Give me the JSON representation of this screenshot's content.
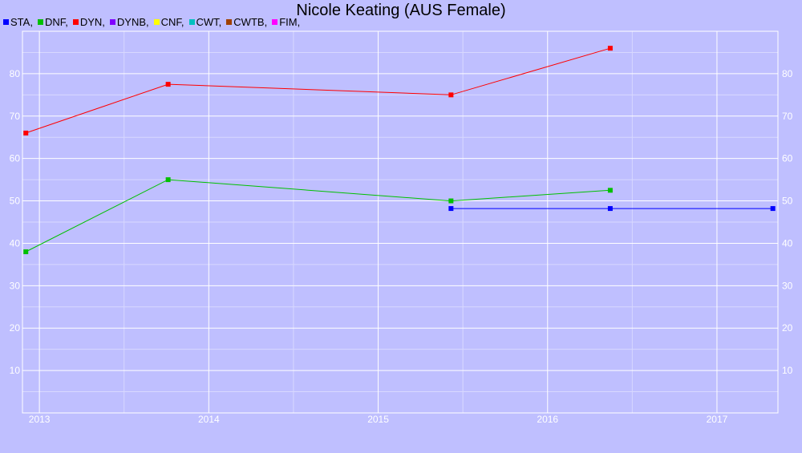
{
  "chart_data": {
    "type": "line",
    "title": "Nicole Keating (AUS Female)",
    "xlabel": "",
    "ylabel": "",
    "x_ticks": [
      "2013",
      "2014",
      "2015",
      "2016",
      "2017"
    ],
    "y_ticks": [
      10,
      20,
      30,
      40,
      50,
      60,
      70,
      80
    ],
    "xlim": [
      2012.9,
      2017.36
    ],
    "ylim": [
      0,
      90
    ],
    "grid": true,
    "legend_position": "top-left",
    "legend": [
      {
        "label": "STA,",
        "color": "#0000ff"
      },
      {
        "label": "DNF,",
        "color": "#00c000"
      },
      {
        "label": "DYN,",
        "color": "#ff0000"
      },
      {
        "label": "DYNB,",
        "color": "#8000ff"
      },
      {
        "label": "CNF,",
        "color": "#ffff00"
      },
      {
        "label": "CWT,",
        "color": "#00c0c0"
      },
      {
        "label": "CWTB,",
        "color": "#a04000"
      },
      {
        "label": "FIM,",
        "color": "#ff00ff"
      }
    ],
    "series": [
      {
        "key": "STA",
        "color": "#0000ff",
        "points": [
          [
            2015.43,
            48.2
          ],
          [
            2016.37,
            48.2
          ],
          [
            2017.33,
            48.2
          ]
        ]
      },
      {
        "key": "DNF",
        "color": "#00c000",
        "points": [
          [
            2012.92,
            38
          ],
          [
            2013.76,
            55
          ],
          [
            2015.43,
            50
          ],
          [
            2016.37,
            52.5
          ]
        ]
      },
      {
        "key": "DYN",
        "color": "#ff0000",
        "points": [
          [
            2012.92,
            66
          ],
          [
            2013.76,
            77.5
          ],
          [
            2015.43,
            75
          ],
          [
            2016.37,
            86
          ]
        ]
      }
    ]
  }
}
